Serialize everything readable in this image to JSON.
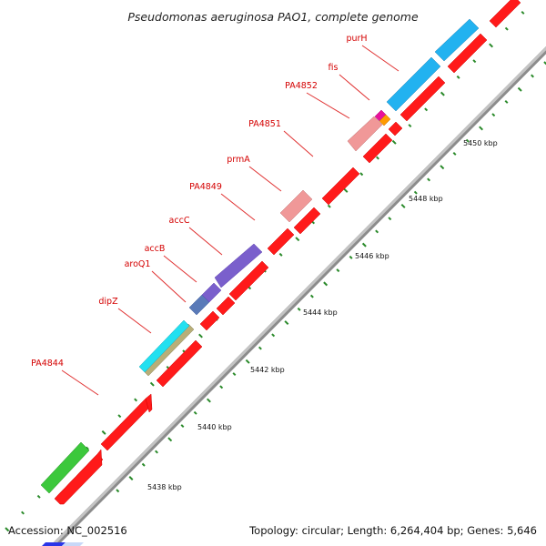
{
  "title": "Pseudomonas aeruginosa PAO1, complete genome",
  "footer": {
    "accession_label": "Accession:",
    "accession": "NC_002516",
    "topology": "Topology: circular; Length: 6,264,404 bp; Genes: 5,646"
  },
  "scale_labels": [
    "5438 kbp",
    "5440 kbp",
    "5442 kbp",
    "5444 kbp",
    "5446 kbp",
    "5448 kbp",
    "5450 kbp"
  ],
  "gene_labels": [
    "purH",
    "fis",
    "PA4852",
    "PA4851",
    "prmA",
    "PA4849",
    "accC",
    "accB",
    "aroQ1",
    "dipZ",
    "PA4844"
  ],
  "colors": {
    "forward_cds": "#ff1a1a",
    "backbone": "#a8a8a8",
    "label": "#d40000",
    "tick": "#2a8a2a",
    "purH": "#22b2f0",
    "fis": "#e8129a",
    "orange_feature": "#ff9a00",
    "PA4852": "#f09898",
    "prmA": "#f09898",
    "accC": "#7a5fcc",
    "accB": "#5a7ab8",
    "dipZ": "#22e0f0",
    "dipZ_lower": "#b8ae78",
    "PA4844": "#3cc83c"
  }
}
